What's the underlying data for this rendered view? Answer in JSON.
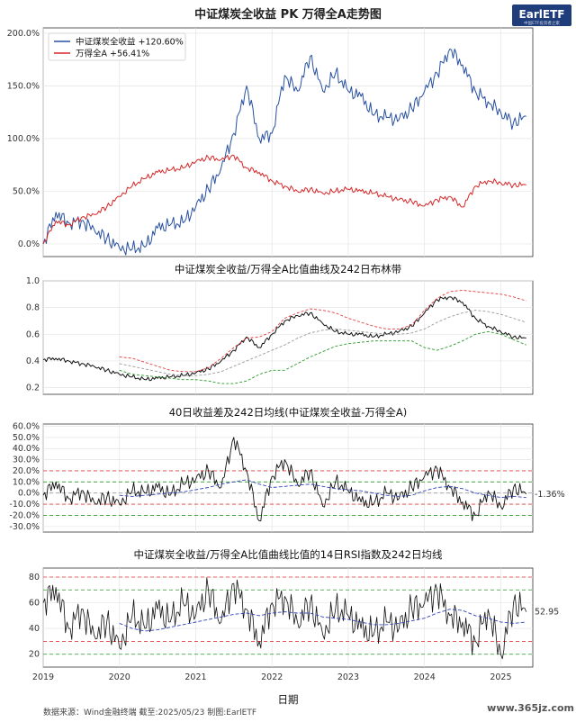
{
  "title": "中证煤炭全收益 PK 万得全A走势图",
  "logo": {
    "text": "EarlETF",
    "sub": "中国ETF投资者之家"
  },
  "xlabel": "日期",
  "x_ticks": [
    "2019",
    "2020",
    "2021",
    "2022",
    "2023",
    "2024",
    "2025"
  ],
  "footer": "数据来源：Wind金融终端 截至:2025/05/23 制图:EarlETF",
  "watermark": "www.365jz.com",
  "colors": {
    "coal": "#2850a0",
    "a_share": "#d62728",
    "ref_gray": "#999999",
    "upper_red": "#e23b3b",
    "lower_green": "#2a9a2a",
    "ma_blue": "#3344bb"
  },
  "chart_data": [
    {
      "type": "line",
      "title": "",
      "ylim": [
        -0.12,
        2.05
      ],
      "y_ticks": [
        "0.0%",
        "50.0%",
        "100.0%",
        "150.0%",
        "200.0%"
      ],
      "legend": {
        "placement": "top-left",
        "items": [
          "中证煤炭全收益 +120.60%",
          "万得全A +56.41%"
        ]
      },
      "x": [
        "2019-01",
        "2019-03",
        "2019-05",
        "2019-07",
        "2019-09",
        "2019-11",
        "2020-01",
        "2020-03",
        "2020-05",
        "2020-07",
        "2020-09",
        "2020-11",
        "2021-01",
        "2021-03",
        "2021-05",
        "2021-07",
        "2021-09",
        "2021-11",
        "2022-01",
        "2022-03",
        "2022-05",
        "2022-07",
        "2022-09",
        "2022-11",
        "2023-01",
        "2023-03",
        "2023-05",
        "2023-07",
        "2023-09",
        "2023-11",
        "2024-01",
        "2024-03",
        "2024-05",
        "2024-07",
        "2024-09",
        "2024-11",
        "2025-01",
        "2025-03",
        "2025-05"
      ],
      "series": [
        {
          "name": "中证煤炭全收益",
          "values": [
            0.0,
            0.3,
            0.2,
            0.22,
            0.14,
            0.05,
            -0.04,
            -0.05,
            -0.03,
            0.15,
            0.18,
            0.2,
            0.35,
            0.52,
            0.72,
            1.05,
            1.5,
            1.0,
            1.05,
            1.6,
            1.45,
            1.78,
            1.45,
            1.62,
            1.45,
            1.4,
            1.22,
            1.2,
            1.18,
            1.28,
            1.45,
            1.62,
            1.85,
            1.7,
            1.45,
            1.35,
            1.25,
            1.15,
            1.21
          ]
        },
        {
          "name": "万得全A",
          "values": [
            0.0,
            0.22,
            0.18,
            0.25,
            0.28,
            0.35,
            0.45,
            0.55,
            0.62,
            0.68,
            0.7,
            0.72,
            0.78,
            0.82,
            0.8,
            0.84,
            0.72,
            0.68,
            0.6,
            0.55,
            0.5,
            0.52,
            0.48,
            0.5,
            0.52,
            0.5,
            0.48,
            0.45,
            0.42,
            0.4,
            0.36,
            0.42,
            0.45,
            0.35,
            0.55,
            0.6,
            0.58,
            0.56,
            0.56
          ]
        }
      ]
    },
    {
      "type": "line",
      "title": "中证煤炭全收益/万得全A比值曲线及242日布林带",
      "ylim": [
        0.15,
        1.0
      ],
      "y_ticks": [
        "0.2",
        "0.4",
        "0.6",
        "0.8",
        "1.0"
      ],
      "x": [
        "2019-01",
        "2019-03",
        "2019-05",
        "2019-07",
        "2019-09",
        "2019-11",
        "2020-01",
        "2020-03",
        "2020-05",
        "2020-07",
        "2020-09",
        "2020-11",
        "2021-01",
        "2021-03",
        "2021-05",
        "2021-07",
        "2021-09",
        "2021-11",
        "2022-01",
        "2022-03",
        "2022-05",
        "2022-07",
        "2022-09",
        "2022-11",
        "2023-01",
        "2023-03",
        "2023-05",
        "2023-07",
        "2023-09",
        "2023-11",
        "2024-01",
        "2024-03",
        "2024-05",
        "2024-07",
        "2024-09",
        "2024-11",
        "2025-01",
        "2025-03",
        "2025-05"
      ],
      "series": [
        {
          "name": "ratio",
          "values": [
            0.41,
            0.42,
            0.4,
            0.38,
            0.36,
            0.33,
            0.3,
            0.28,
            0.26,
            0.27,
            0.28,
            0.29,
            0.31,
            0.34,
            0.4,
            0.48,
            0.58,
            0.5,
            0.6,
            0.7,
            0.74,
            0.76,
            0.68,
            0.62,
            0.6,
            0.6,
            0.58,
            0.6,
            0.62,
            0.66,
            0.76,
            0.86,
            0.88,
            0.84,
            0.72,
            0.66,
            0.62,
            0.58,
            0.57
          ]
        },
        {
          "name": "upper",
          "values": [
            null,
            null,
            null,
            null,
            null,
            null,
            0.43,
            0.42,
            0.39,
            0.36,
            0.33,
            0.32,
            0.32,
            0.35,
            0.42,
            0.5,
            0.57,
            0.58,
            0.62,
            0.72,
            0.76,
            0.79,
            0.78,
            0.76,
            0.72,
            0.69,
            0.66,
            0.64,
            0.64,
            0.67,
            0.78,
            0.87,
            0.92,
            0.93,
            0.92,
            0.91,
            0.9,
            0.88,
            0.85
          ]
        },
        {
          "name": "middle",
          "values": [
            null,
            null,
            null,
            null,
            null,
            null,
            0.38,
            0.36,
            0.34,
            0.32,
            0.3,
            0.29,
            0.29,
            0.3,
            0.32,
            0.36,
            0.4,
            0.44,
            0.48,
            0.52,
            0.57,
            0.61,
            0.63,
            0.64,
            0.63,
            0.62,
            0.61,
            0.6,
            0.6,
            0.61,
            0.64,
            0.69,
            0.73,
            0.76,
            0.78,
            0.77,
            0.75,
            0.72,
            0.69
          ]
        },
        {
          "name": "lower",
          "values": [
            null,
            null,
            null,
            null,
            null,
            null,
            0.33,
            0.3,
            0.29,
            0.28,
            0.27,
            0.26,
            0.26,
            0.25,
            0.23,
            0.23,
            0.25,
            0.3,
            0.33,
            0.33,
            0.38,
            0.43,
            0.47,
            0.51,
            0.53,
            0.54,
            0.55,
            0.55,
            0.55,
            0.55,
            0.5,
            0.48,
            0.51,
            0.55,
            0.6,
            0.62,
            0.6,
            0.56,
            0.52
          ]
        }
      ]
    },
    {
      "type": "line",
      "title": "40日收益差及242日均线(中证煤炭全收益-万得全A)",
      "ylim": [
        -0.35,
        0.62
      ],
      "y_ticks": [
        "-30.0%",
        "-20.0%",
        "-10.0%",
        "0.0%",
        "10.0%",
        "20.0%",
        "30.0%",
        "40.0%",
        "50.0%",
        "60.0%"
      ],
      "ref_lines": [
        0.2,
        0.1,
        0.0,
        -0.1,
        -0.2
      ],
      "end_label": "-1.36%",
      "x": [
        "2019-01",
        "2019-03",
        "2019-05",
        "2019-07",
        "2019-09",
        "2019-11",
        "2020-01",
        "2020-03",
        "2020-05",
        "2020-07",
        "2020-09",
        "2020-11",
        "2021-01",
        "2021-03",
        "2021-05",
        "2021-07",
        "2021-09",
        "2021-11",
        "2022-01",
        "2022-03",
        "2022-05",
        "2022-07",
        "2022-09",
        "2022-11",
        "2023-01",
        "2023-03",
        "2023-05",
        "2023-07",
        "2023-09",
        "2023-11",
        "2024-01",
        "2024-03",
        "2024-05",
        "2024-07",
        "2024-09",
        "2024-11",
        "2025-01",
        "2025-03",
        "2025-05"
      ],
      "series": [
        {
          "name": "diff",
          "values": [
            -0.02,
            0.1,
            -0.05,
            0.02,
            -0.08,
            -0.04,
            -0.1,
            0.02,
            0.0,
            0.05,
            -0.02,
            0.08,
            0.12,
            0.2,
            0.05,
            0.5,
            0.2,
            -0.25,
            0.15,
            0.3,
            0.08,
            0.2,
            -0.12,
            0.1,
            0.02,
            -0.08,
            -0.1,
            0.0,
            -0.05,
            0.05,
            0.15,
            0.22,
            0.05,
            -0.08,
            -0.2,
            0.02,
            -0.12,
            0.05,
            -0.01
          ]
        },
        {
          "name": "ma242",
          "values": [
            null,
            null,
            null,
            null,
            null,
            null,
            -0.02,
            -0.03,
            -0.02,
            -0.01,
            0.0,
            0.01,
            0.03,
            0.05,
            0.08,
            0.1,
            0.12,
            0.08,
            0.05,
            0.06,
            0.07,
            0.08,
            0.06,
            0.04,
            0.03,
            0.02,
            0.0,
            -0.02,
            -0.03,
            -0.02,
            0.02,
            0.05,
            0.06,
            0.04,
            0.0,
            -0.02,
            -0.04,
            -0.03,
            -0.04
          ]
        }
      ]
    },
    {
      "type": "line",
      "title": "中证煤炭全收益/万得全A比值曲线比值的14日RSI指数及242日均线",
      "ylim": [
        10,
        87
      ],
      "y_ticks": [
        "20",
        "40",
        "60",
        "80"
      ],
      "ref_lines": [
        80,
        70,
        30,
        20
      ],
      "end_label": "52.95",
      "x": [
        "2019-01",
        "2019-03",
        "2019-05",
        "2019-07",
        "2019-09",
        "2019-11",
        "2020-01",
        "2020-03",
        "2020-05",
        "2020-07",
        "2020-09",
        "2020-11",
        "2021-01",
        "2021-03",
        "2021-05",
        "2021-07",
        "2021-09",
        "2021-11",
        "2022-01",
        "2022-03",
        "2022-05",
        "2022-07",
        "2022-09",
        "2022-11",
        "2023-01",
        "2023-03",
        "2023-05",
        "2023-07",
        "2023-09",
        "2023-11",
        "2024-01",
        "2024-03",
        "2024-05",
        "2024-07",
        "2024-09",
        "2024-11",
        "2025-01",
        "2025-03",
        "2025-05"
      ],
      "series": [
        {
          "name": "rsi",
          "values": [
            60,
            72,
            40,
            55,
            35,
            45,
            25,
            50,
            40,
            55,
            45,
            60,
            50,
            70,
            45,
            75,
            55,
            30,
            60,
            65,
            45,
            60,
            35,
            55,
            50,
            40,
            35,
            45,
            40,
            55,
            60,
            70,
            50,
            45,
            30,
            55,
            20,
            60,
            53
          ]
        },
        {
          "name": "ma242",
          "values": [
            null,
            null,
            null,
            null,
            null,
            null,
            44,
            40,
            38,
            39,
            41,
            43,
            45,
            47,
            49,
            51,
            52,
            50,
            52,
            53,
            52,
            52,
            49,
            48,
            47,
            45,
            43,
            43,
            44,
            46,
            48,
            52,
            55,
            54,
            50,
            48,
            45,
            44,
            45
          ]
        }
      ]
    }
  ]
}
